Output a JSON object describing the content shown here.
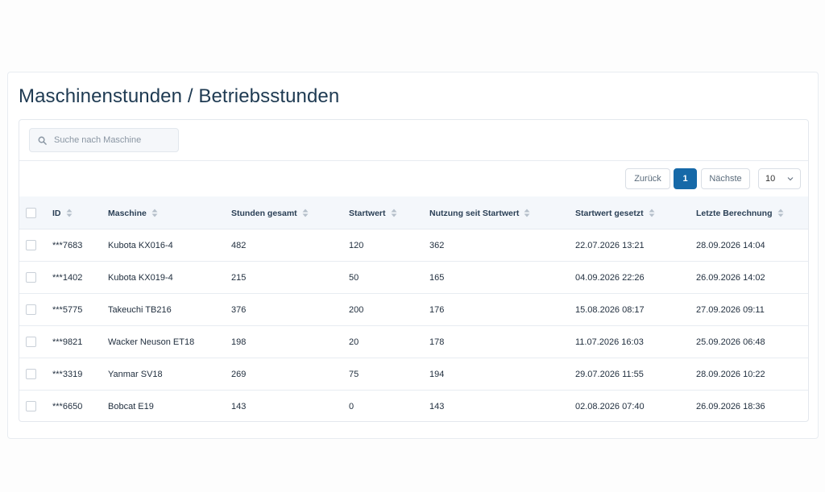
{
  "page": {
    "title": "Maschinenstunden / Betriebsstunden"
  },
  "search": {
    "placeholder": "Suche nach Maschine"
  },
  "pagination": {
    "prev_label": "Zurück",
    "current_page": "1",
    "next_label": "Nächste",
    "page_size": "10"
  },
  "table": {
    "columns": [
      "ID",
      "Maschine",
      "Stunden gesamt",
      "Startwert",
      "Nutzung seit Startwert",
      "Startwert gesetzt",
      "Letzte Berechnung"
    ],
    "rows": [
      {
        "id": "***7683",
        "machine": "Kubota KX016-4",
        "hours_total": "482",
        "start_value": "120",
        "usage": "362",
        "start_set": "22.07.2026 13:21",
        "last_calc": "28.09.2026 14:04"
      },
      {
        "id": "***1402",
        "machine": "Kubota KX019-4",
        "hours_total": "215",
        "start_value": "50",
        "usage": "165",
        "start_set": "04.09.2026 22:26",
        "last_calc": "26.09.2026 14:02"
      },
      {
        "id": "***5775",
        "machine": "Takeuchi TB216",
        "hours_total": "376",
        "start_value": "200",
        "usage": "176",
        "start_set": "15.08.2026 08:17",
        "last_calc": "27.09.2026 09:11"
      },
      {
        "id": "***9821",
        "machine": "Wacker Neuson ET18",
        "hours_total": "198",
        "start_value": "20",
        "usage": "178",
        "start_set": "11.07.2026 16:03",
        "last_calc": "25.09.2026 06:48"
      },
      {
        "id": "***3319",
        "machine": "Yanmar SV18",
        "hours_total": "269",
        "start_value": "75",
        "usage": "194",
        "start_set": "29.07.2026 11:55",
        "last_calc": "28.09.2026 10:22"
      },
      {
        "id": "***6650",
        "machine": "Bobcat E19",
        "hours_total": "143",
        "start_value": "0",
        "usage": "143",
        "start_set": "02.08.2026 07:40",
        "last_calc": "26.09.2026 18:36"
      }
    ]
  },
  "colors": {
    "accent": "#1669a8",
    "header_bg": "#f4f7fb",
    "title": "#1e3a52"
  },
  "icons": {
    "search": "search-icon",
    "sort": "sort-icon",
    "dropdown": "chevron-down-icon"
  }
}
